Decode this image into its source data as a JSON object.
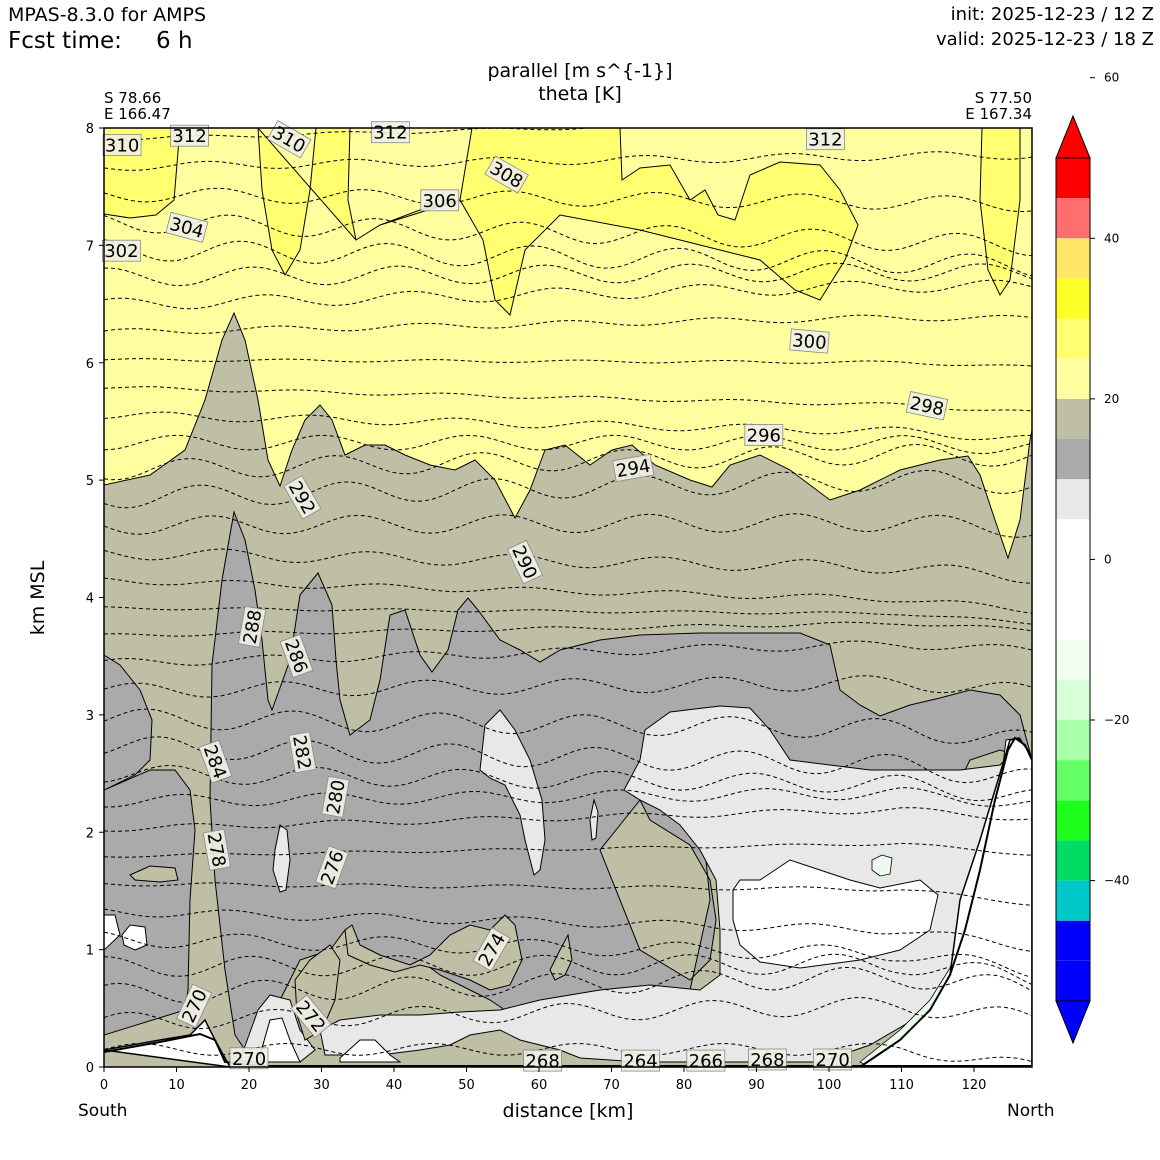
{
  "header": {
    "model_title": "MPAS-8.3.0 for AMPS",
    "fcst_label": "Fcst time:",
    "fcst_value": "6 h",
    "init": "init: 2025-12-23 / 12 Z",
    "valid": "valid: 2025-12-23 / 18 Z"
  },
  "cross_section": {
    "start_lat": "S 78.66",
    "start_lon": "E 166.47",
    "end_lat": "S 77.50",
    "end_lon": "E 167.34",
    "south_label": "South",
    "north_label": "North"
  },
  "colors": {
    "yellow_light": "#ffffa0",
    "yellow_mid": "#ffff70",
    "gray_olive": "#bfbfa6",
    "gray_dark": "#aaaaaa",
    "gray_light": "#e8e8e8",
    "white": "#ffffff",
    "mint": "#eefaee"
  },
  "chart_data": {
    "type": "heatmap",
    "title": [
      "parallel [m s^{-1}]",
      "theta [K]"
    ],
    "xlabel": "distance [km]",
    "ylabel": "km MSL",
    "xlim": [
      0,
      128
    ],
    "ylim": [
      0,
      8
    ],
    "x_ticks": [
      0,
      10,
      20,
      30,
      40,
      50,
      60,
      70,
      80,
      90,
      100,
      110,
      120
    ],
    "y_ticks": [
      0,
      1,
      2,
      3,
      4,
      5,
      6,
      7,
      8
    ],
    "colorbar": {
      "range": [
        -60,
        60
      ],
      "ticks": [
        {
          "value": 60,
          "label": "60"
        },
        {
          "value": 40,
          "label": "40"
        },
        {
          "value": 20,
          "label": "20"
        },
        {
          "value": 0,
          "label": "0"
        },
        {
          "value": -20,
          "label": "−20"
        },
        {
          "value": -40,
          "label": "−40"
        }
      ],
      "levels": [
        {
          "from": -55,
          "to": -50,
          "color": "#0000ff"
        },
        {
          "from": -50,
          "to": -45,
          "color": "#0000ff"
        },
        {
          "from": -45,
          "to": -40,
          "color": "#00c8c8"
        },
        {
          "from": -40,
          "to": -35,
          "color": "#00dc64"
        },
        {
          "from": -35,
          "to": -30,
          "color": "#1eff1e"
        },
        {
          "from": -30,
          "to": -25,
          "color": "#64ff64"
        },
        {
          "from": -25,
          "to": -20,
          "color": "#aaffaa"
        },
        {
          "from": -20,
          "to": -15,
          "color": "#d8ffd8"
        },
        {
          "from": -15,
          "to": -10,
          "color": "#f0fff0"
        },
        {
          "from": -10,
          "to": -5,
          "color": "#ffffff"
        },
        {
          "from": -5,
          "to": 0,
          "color": "#ffffff"
        },
        {
          "from": 0,
          "to": 5,
          "color": "#ffffff"
        },
        {
          "from": 5,
          "to": 10,
          "color": "#e8e8e8"
        },
        {
          "from": 10,
          "to": 15,
          "color": "#aaaaaa"
        },
        {
          "from": 15,
          "to": 20,
          "color": "#bfbfa6"
        },
        {
          "from": 20,
          "to": 25,
          "color": "#ffffa0"
        },
        {
          "from": 25,
          "to": 30,
          "color": "#ffff70"
        },
        {
          "from": 30,
          "to": 35,
          "color": "#ffff28"
        },
        {
          "from": 35,
          "to": 40,
          "color": "#ffe664"
        },
        {
          "from": 40,
          "to": 45,
          "color": "#ff6e6e"
        },
        {
          "from": 45,
          "to": 50,
          "color": "#ff0000"
        }
      ]
    },
    "theta_contour_labels": [
      {
        "value": "310",
        "x": 2.5,
        "y": 7.85,
        "angle": 0
      },
      {
        "value": "312",
        "x": 11.8,
        "y": 7.93,
        "angle": 0
      },
      {
        "value": "310",
        "x": 25.5,
        "y": 7.9,
        "angle": 30
      },
      {
        "value": "312",
        "x": 39.5,
        "y": 7.96,
        "angle": 0
      },
      {
        "value": "312",
        "x": 99.5,
        "y": 7.9,
        "angle": 0
      },
      {
        "value": "308",
        "x": 55.5,
        "y": 7.6,
        "angle": 30
      },
      {
        "value": "306",
        "x": 46.3,
        "y": 7.38,
        "angle": 0
      },
      {
        "value": "304",
        "x": 11.4,
        "y": 7.15,
        "angle": 15
      },
      {
        "value": "302",
        "x": 2.4,
        "y": 6.95,
        "angle": 0
      },
      {
        "value": "300",
        "x": 97.3,
        "y": 6.18,
        "angle": 5
      },
      {
        "value": "298",
        "x": 113.5,
        "y": 5.63,
        "angle": 12
      },
      {
        "value": "296",
        "x": 91.0,
        "y": 5.38,
        "angle": 0
      },
      {
        "value": "294",
        "x": 73.0,
        "y": 5.1,
        "angle": -10
      },
      {
        "value": "292",
        "x": 27.3,
        "y": 4.85,
        "angle": 60
      },
      {
        "value": "290",
        "x": 58.0,
        "y": 4.3,
        "angle": 65
      },
      {
        "value": "288",
        "x": 20.5,
        "y": 3.75,
        "angle": -80
      },
      {
        "value": "286",
        "x": 26.5,
        "y": 3.5,
        "angle": 70
      },
      {
        "value": "284",
        "x": 15.3,
        "y": 2.6,
        "angle": 70
      },
      {
        "value": "282",
        "x": 27.3,
        "y": 2.68,
        "angle": 80
      },
      {
        "value": "280",
        "x": 32.0,
        "y": 2.3,
        "angle": -80
      },
      {
        "value": "278",
        "x": 15.5,
        "y": 1.85,
        "angle": 80
      },
      {
        "value": "276",
        "x": 31.5,
        "y": 1.7,
        "angle": -70
      },
      {
        "value": "274",
        "x": 53.5,
        "y": 1.0,
        "angle": -60
      },
      {
        "value": "272",
        "x": 28.5,
        "y": 0.43,
        "angle": 50
      },
      {
        "value": "270",
        "x": 12.5,
        "y": 0.52,
        "angle": -65
      },
      {
        "value": "270",
        "x": 20.0,
        "y": 0.07,
        "angle": 0
      },
      {
        "value": "268",
        "x": 60.5,
        "y": 0.05,
        "angle": 0
      },
      {
        "value": "264",
        "x": 74.0,
        "y": 0.05,
        "angle": 0
      },
      {
        "value": "266",
        "x": 83.0,
        "y": 0.05,
        "angle": 0
      },
      {
        "value": "268",
        "x": 91.5,
        "y": 0.06,
        "angle": 0
      },
      {
        "value": "270",
        "x": 100.5,
        "y": 0.06,
        "angle": 0
      }
    ]
  }
}
